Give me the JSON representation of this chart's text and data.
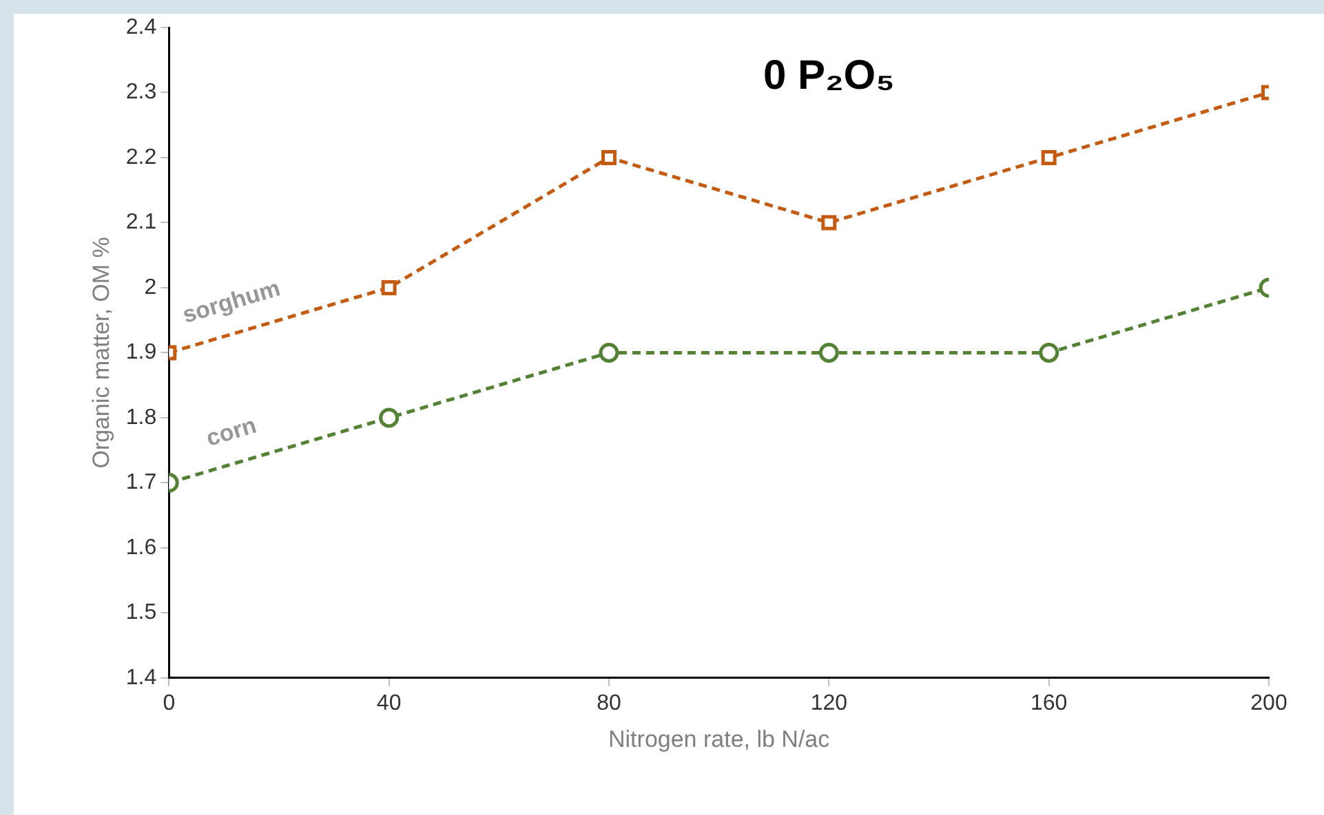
{
  "chart_data": {
    "type": "line",
    "title": "0 P₂O₅",
    "xlabel": "Nitrogen rate, lb N/ac",
    "ylabel": "Organic matter, OM %",
    "x": [
      0,
      40,
      80,
      120,
      160,
      200
    ],
    "series": [
      {
        "name": "sorghum",
        "color": "#c55a11",
        "marker": "square",
        "values": [
          1.9,
          2.0,
          2.2,
          2.1,
          2.2,
          2.3
        ]
      },
      {
        "name": "corn",
        "color": "#548235",
        "marker": "circle",
        "values": [
          1.7,
          1.8,
          1.9,
          1.9,
          1.9,
          2.0
        ]
      }
    ],
    "xlim": [
      0,
      200
    ],
    "xticks": [
      0,
      40,
      80,
      120,
      160,
      200
    ],
    "ylim": [
      1.4,
      2.4
    ],
    "yticks": [
      1.4,
      1.5,
      1.6,
      1.7,
      1.8,
      1.9,
      2,
      2.1,
      2.2,
      2.3,
      2.4
    ],
    "grid": false,
    "legend": false,
    "line_style": "dashed"
  }
}
